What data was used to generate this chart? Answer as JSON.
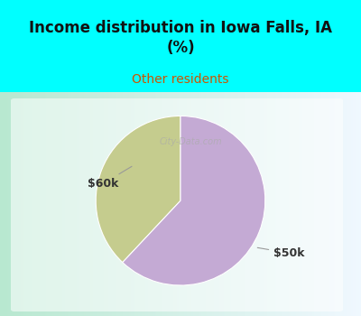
{
  "title": "Income distribution in Iowa Falls, IA\n(%)",
  "subtitle": "Other residents",
  "title_color": "#111111",
  "subtitle_color": "#cc5500",
  "title_bg_color": "#00ffff",
  "slices": [
    {
      "label": "$60k",
      "value": 38,
      "color": "#c5cc8e"
    },
    {
      "label": "$50k",
      "value": 62,
      "color": "#c4aad4"
    }
  ],
  "startangle": 90,
  "watermark": "City-Data.com",
  "chart_bg_left": "#b8e8d0",
  "chart_bg_right": "#e8f0f8",
  "chart_box_color": "#f0f8f0"
}
